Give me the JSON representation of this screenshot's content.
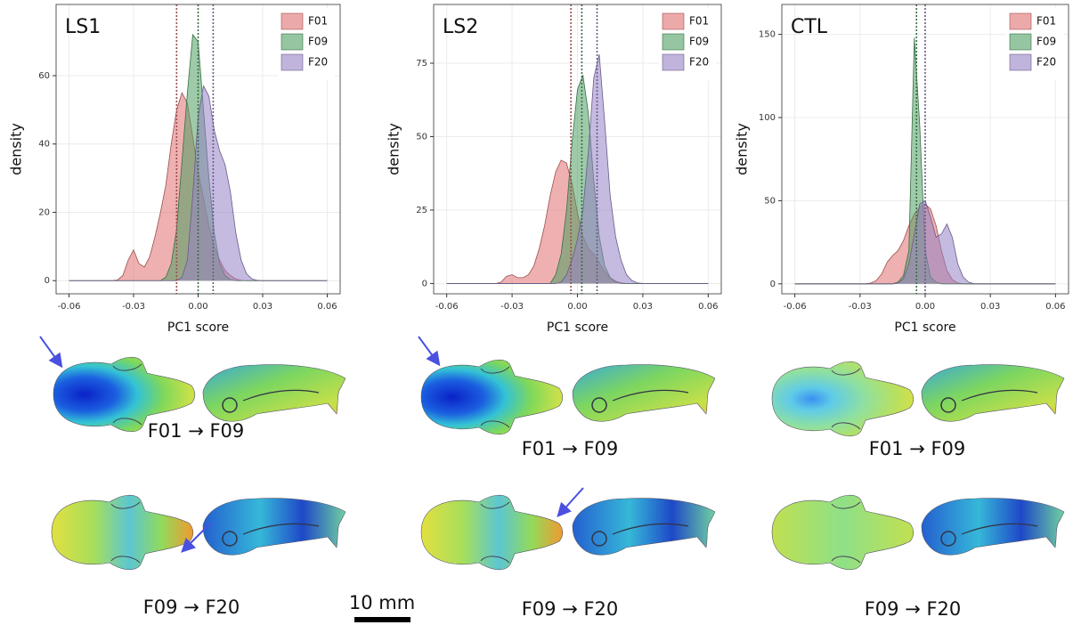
{
  "chart_data": [
    {
      "type": "area",
      "title": "LS1",
      "xlabel": "PC1 score",
      "ylabel": "density",
      "x": [
        -0.06,
        -0.04,
        -0.0375,
        -0.035,
        -0.0325,
        -0.03,
        -0.0275,
        -0.025,
        -0.0225,
        -0.02,
        -0.0175,
        -0.015,
        -0.0125,
        -0.01,
        -0.0075,
        -0.005,
        -0.0025,
        0,
        0.0025,
        0.005,
        0.0075,
        0.01,
        0.0125,
        0.015,
        0.0175,
        0.02,
        0.0225,
        0.025,
        0.0275,
        0.03,
        0.06
      ],
      "series": [
        {
          "name": "F01",
          "color": "#e07070",
          "mean": -0.01,
          "values": [
            0,
            0,
            0.2,
            1.5,
            6,
            9,
            5,
            4,
            7,
            13,
            20,
            28,
            40,
            50,
            55,
            52,
            42,
            32,
            24,
            16,
            10,
            6,
            3,
            1.5,
            0.5,
            0.1,
            0,
            0,
            0,
            0,
            0
          ]
        },
        {
          "name": "F09",
          "color": "#4f9e62",
          "mean": 0,
          "values": [
            0,
            0,
            0,
            0,
            0,
            0,
            0,
            0,
            0,
            0,
            0,
            1,
            5,
            15,
            35,
            55,
            72,
            70,
            50,
            30,
            14,
            5,
            1.5,
            0.3,
            0,
            0,
            0,
            0,
            0,
            0,
            0
          ]
        },
        {
          "name": "F20",
          "color": "#9682c4",
          "mean": 0.007,
          "values": [
            0,
            0,
            0,
            0,
            0,
            0,
            0,
            0,
            0,
            0,
            0,
            0,
            0,
            0,
            1,
            6,
            25,
            48,
            57,
            54,
            44,
            38,
            34,
            26,
            14,
            6,
            2,
            0.5,
            0.1,
            0,
            0
          ]
        }
      ],
      "xlim": [
        -0.066,
        0.066
      ],
      "ylim": [
        -3.85,
        80.85
      ],
      "xticks": [
        -0.06,
        -0.03,
        {
          "value": 0,
          "label": "0.00"
        },
        0.03,
        0.06
      ],
      "yticks": [
        0,
        20,
        40,
        60
      ],
      "grid": true,
      "legend": "upper right"
    },
    {
      "type": "area",
      "title": "LS2",
      "xlabel": "PC1 score",
      "ylabel": "density",
      "x": [
        -0.06,
        -0.04,
        -0.0375,
        -0.035,
        -0.0325,
        -0.03,
        -0.0275,
        -0.025,
        -0.0225,
        -0.02,
        -0.0175,
        -0.015,
        -0.0125,
        -0.01,
        -0.0075,
        -0.005,
        -0.0025,
        0,
        0.0025,
        0.005,
        0.0075,
        0.01,
        0.0125,
        0.015,
        0.0175,
        0.02,
        0.0225,
        0.025,
        0.0275,
        0.03,
        0.06
      ],
      "series": [
        {
          "name": "F01",
          "color": "#e07070",
          "mean": -0.003,
          "values": [
            0,
            0,
            0,
            0.5,
            2.5,
            3,
            2,
            2,
            3,
            6,
            12,
            20,
            30,
            38,
            42,
            41,
            34,
            24,
            16,
            12,
            10,
            7,
            4,
            2,
            0.8,
            0.2,
            0,
            0,
            0,
            0,
            0
          ]
        },
        {
          "name": "F09",
          "color": "#4f9e62",
          "mean": 0.002,
          "values": [
            0,
            0,
            0,
            0,
            0,
            0,
            0,
            0,
            0,
            0,
            0,
            0,
            0,
            3,
            10,
            25,
            48,
            66,
            71,
            58,
            35,
            16,
            6,
            2,
            0.5,
            0,
            0,
            0,
            0,
            0,
            0
          ]
        },
        {
          "name": "F20",
          "color": "#9682c4",
          "mean": 0.009,
          "values": [
            0,
            0,
            0,
            0,
            0,
            0,
            0,
            0,
            0,
            0,
            0,
            0,
            0,
            0,
            0.5,
            3,
            8,
            15,
            25,
            45,
            70,
            78,
            55,
            30,
            16,
            8,
            3,
            1,
            0.2,
            0,
            0
          ]
        }
      ],
      "xlim": [
        -0.066,
        0.066
      ],
      "ylim": [
        -3.5,
        95
      ],
      "xticks": [
        -0.06,
        -0.03,
        {
          "value": 0,
          "label": "0.00"
        },
        0.03,
        0.06
      ],
      "yticks": [
        0,
        25,
        50,
        75
      ],
      "grid": true,
      "legend": "upper right"
    },
    {
      "type": "area",
      "title": "CTL",
      "xlabel": "PC1 score",
      "ylabel": "density",
      "x": [
        -0.06,
        -0.04,
        -0.0375,
        -0.035,
        -0.0325,
        -0.03,
        -0.0275,
        -0.025,
        -0.0225,
        -0.02,
        -0.0175,
        -0.015,
        -0.0125,
        -0.01,
        -0.0075,
        -0.005,
        -0.0025,
        0,
        0.0025,
        0.005,
        0.0075,
        0.01,
        0.0125,
        0.015,
        0.0175,
        0.02,
        0.0225,
        0.025,
        0.0275,
        0.03,
        0.06
      ],
      "series": [
        {
          "name": "F01",
          "color": "#e07070",
          "values": [
            0,
            0,
            0,
            0,
            0,
            0,
            0,
            0.5,
            2,
            6,
            13,
            17,
            20,
            26,
            35,
            42,
            46,
            48,
            45,
            35,
            20,
            8,
            2.5,
            0.5,
            0,
            0,
            0,
            0,
            0,
            0,
            0
          ]
        },
        {
          "name": "F09",
          "color": "#4f9e62",
          "mean": -0.004,
          "values": [
            0,
            0,
            0,
            0,
            0,
            0,
            0,
            0,
            0,
            0,
            0,
            0,
            1,
            5,
            20,
            148,
            95,
            20,
            4,
            1,
            0,
            0,
            0,
            0,
            0,
            0,
            0,
            0,
            0,
            0,
            0
          ]
        },
        {
          "name": "F20",
          "color": "#9682c4",
          "mean": 0,
          "values": [
            0,
            0,
            0,
            0,
            0,
            0,
            0,
            0,
            0,
            0,
            0,
            0,
            0.5,
            3,
            12,
            30,
            48,
            50,
            40,
            28,
            30,
            36,
            28,
            12,
            4,
            1,
            0,
            0,
            0,
            0,
            0
          ]
        }
      ],
      "xlim": [
        -0.066,
        0.066
      ],
      "ylim": [
        -6,
        168
      ],
      "xticks": [
        -0.06,
        -0.03,
        {
          "value": 0,
          "label": "0.00"
        },
        0.03,
        0.06
      ],
      "yticks": [
        0,
        50,
        100,
        150
      ],
      "grid": true,
      "legend": "upper right"
    }
  ],
  "transitions": [
    [
      "F01 → F09",
      "F09 → F20"
    ],
    [
      "F01 → F09",
      "F09 → F20"
    ],
    [
      "F01 → F09",
      "F09 → F20"
    ]
  ],
  "scale_bar": "10 mm"
}
